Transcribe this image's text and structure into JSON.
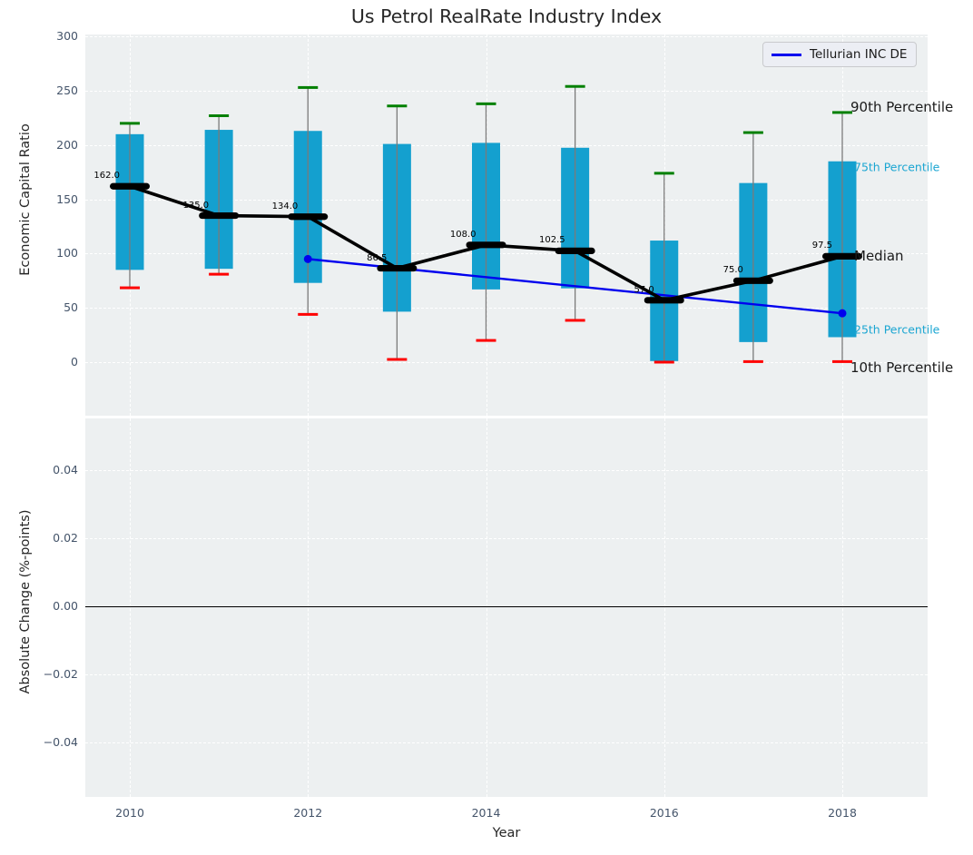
{
  "title": "Us Petrol RealRate Industry Index",
  "legend": {
    "label": "Tellurian INC DE",
    "line_color": "#0000ee"
  },
  "chart_data": [
    {
      "type": "box",
      "panel": "top",
      "title": "Us Petrol RealRate Industry Index",
      "xlabel": "Year",
      "ylabel": "Economic Capital Ratio",
      "categories": [
        2010,
        2011,
        2012,
        2013,
        2014,
        2015,
        2016,
        2017,
        2018
      ],
      "series": {
        "p90": [
          220,
          227,
          253,
          236,
          238,
          254,
          174,
          211.5,
          230
        ],
        "p75": [
          210,
          214,
          213,
          201,
          202,
          197.5,
          112,
          165,
          185
        ],
        "median": [
          162.0,
          135.0,
          134.0,
          86.5,
          108.0,
          102.5,
          57.0,
          75.0,
          97.5
        ],
        "p25": [
          85,
          86,
          73,
          46.5,
          67,
          68,
          1,
          18.5,
          23
        ],
        "p10": [
          68.5,
          81,
          44,
          2.5,
          20,
          38.5,
          0,
          0.5,
          0.5
        ]
      },
      "median_labels": [
        "162.0",
        "135.0",
        "134.0",
        "86.5",
        "108.0",
        "102.5",
        "57.0",
        "75.0",
        "97.5"
      ],
      "overlay_line": {
        "name": "Tellurian INC DE",
        "x": [
          2012,
          2018
        ],
        "y": [
          95,
          45
        ],
        "color": "#0000ee"
      },
      "annotations": [
        {
          "text": "90th Percentile",
          "value": 235,
          "color": "#1a1a1a",
          "size": 15,
          "dx": 9
        },
        {
          "text": "75th Percentile",
          "value": 180,
          "color": "#1ba6d2",
          "size": 12.5,
          "dx": 13
        },
        {
          "text": "Median",
          "value": 97.5,
          "color": "#1a1a1a",
          "size": 15,
          "dx": 13
        },
        {
          "text": "25th Percentile",
          "value": 30,
          "color": "#1ba6d2",
          "size": 12.5,
          "dx": 13
        },
        {
          "text": "10th Percentile",
          "value": -5,
          "color": "#1a1a1a",
          "size": 15,
          "dx": 9
        }
      ],
      "yticks": [
        0,
        50,
        100,
        150,
        200,
        250,
        300
      ],
      "ytick_labels": [
        "0",
        "50",
        "100",
        "150",
        "200",
        "250",
        "300"
      ],
      "xticks": [
        2010,
        2012,
        2014,
        2016,
        2018
      ],
      "xtick_labels": [
        "2010",
        "2012",
        "2014",
        "2016",
        "2018"
      ],
      "ylim": [
        -49,
        302
      ],
      "grid": true,
      "legend_position": "upper right",
      "colors": {
        "box": "#14a0cf",
        "whisker": "#7a7a7a",
        "cap_top": "#008000",
        "cap_bottom": "#ff0000",
        "median": "#000000",
        "annotation_cyan": "#1ba6d2",
        "panel_bg": "#edf0f1",
        "grid": "#ffffff",
        "tick": "#44546a"
      }
    },
    {
      "type": "line",
      "panel": "bottom",
      "ylabel": "Absolute Change (%-points)",
      "series": [],
      "zero_line": true,
      "yticks": [
        0.04,
        0.02,
        0.0,
        -0.02,
        -0.04
      ],
      "ytick_labels": [
        "0.04",
        "0.02",
        "0.00",
        "−0.02",
        "−0.04"
      ],
      "xticks": [
        2010,
        2012,
        2014,
        2016,
        2018
      ],
      "xtick_labels": [
        "2010",
        "2012",
        "2014",
        "2016",
        "2018"
      ],
      "ylim": [
        -0.0555,
        0.0555
      ],
      "grid": true
    }
  ]
}
